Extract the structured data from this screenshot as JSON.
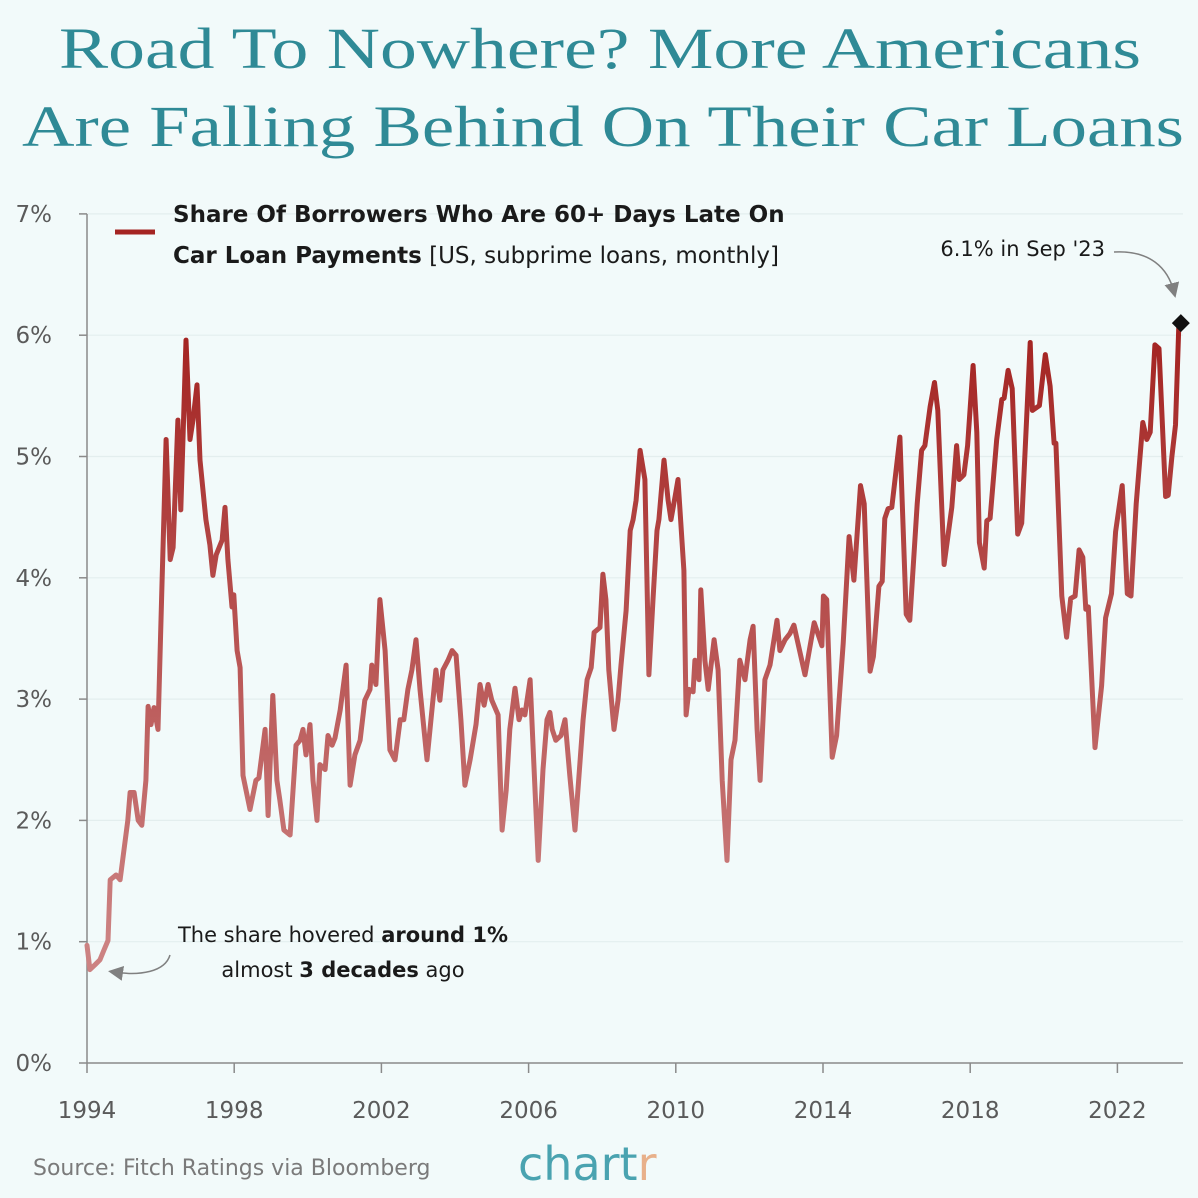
{
  "chart_data": {
    "type": "line",
    "title": [
      "Road To Nowhere? More Americans",
      "Are Falling Behind On Their Car Loans"
    ],
    "legend": {
      "line1": "Share Of Borrowers Who Are 60+ Days Late On",
      "line2_bold": "Car Loan Payments",
      "line2_note": " [US, subprime loans, monthly]",
      "placement": "top-left"
    },
    "xlim": [
      1994,
      2023.75
    ],
    "ylim": [
      0,
      7
    ],
    "x_ticks": [
      "1994",
      "1998",
      "2002",
      "2006",
      "2010",
      "2014",
      "2018",
      "2022"
    ],
    "y_ticks": [
      "0%",
      "1%",
      "2%",
      "3%",
      "4%",
      "5%",
      "6%",
      "7%"
    ],
    "grid": "horizontal",
    "colors": {
      "line_high": "#a42422",
      "line_low": "#cc7f7f",
      "title": "#2f8a96",
      "marker": "#111111"
    },
    "series": [
      {
        "name": "Share Of Borrowers Who Are 60+ Days Late On Car Loan Payments",
        "points": [
          [
            1994.0,
            0.97
          ],
          [
            1994.08,
            0.77
          ],
          [
            1994.22,
            0.81
          ],
          [
            1994.35,
            0.85
          ],
          [
            1994.46,
            0.93
          ],
          [
            1994.57,
            1.01
          ],
          [
            1994.63,
            1.51
          ],
          [
            1994.79,
            1.55
          ],
          [
            1994.9,
            1.51
          ],
          [
            1995.11,
            2.0
          ],
          [
            1995.17,
            2.23
          ],
          [
            1995.28,
            2.23
          ],
          [
            1995.39,
            2.0
          ],
          [
            1995.49,
            1.96
          ],
          [
            1995.6,
            2.33
          ],
          [
            1995.66,
            2.94
          ],
          [
            1995.74,
            2.79
          ],
          [
            1995.82,
            2.93
          ],
          [
            1995.93,
            2.75
          ],
          [
            1996.04,
            3.98
          ],
          [
            1996.15,
            5.14
          ],
          [
            1996.26,
            4.15
          ],
          [
            1996.34,
            4.25
          ],
          [
            1996.47,
            5.3
          ],
          [
            1996.55,
            4.56
          ],
          [
            1996.69,
            5.96
          ],
          [
            1996.8,
            5.14
          ],
          [
            1996.88,
            5.3
          ],
          [
            1996.99,
            5.59
          ],
          [
            1997.07,
            4.97
          ],
          [
            1997.23,
            4.48
          ],
          [
            1997.34,
            4.27
          ],
          [
            1997.42,
            4.02
          ],
          [
            1997.51,
            4.19
          ],
          [
            1997.67,
            4.31
          ],
          [
            1997.75,
            4.58
          ],
          [
            1997.83,
            4.15
          ],
          [
            1997.94,
            3.76
          ],
          [
            1997.99,
            3.86
          ],
          [
            1998.08,
            3.4
          ],
          [
            1998.16,
            3.26
          ],
          [
            1998.24,
            2.37
          ],
          [
            1998.43,
            2.09
          ],
          [
            1998.59,
            2.33
          ],
          [
            1998.67,
            2.35
          ],
          [
            1998.84,
            2.75
          ],
          [
            1998.92,
            2.04
          ],
          [
            1999.05,
            3.03
          ],
          [
            1999.16,
            2.33
          ],
          [
            1999.24,
            2.17
          ],
          [
            1999.35,
            1.92
          ],
          [
            1999.52,
            1.88
          ],
          [
            1999.68,
            2.62
          ],
          [
            1999.79,
            2.66
          ],
          [
            1999.87,
            2.75
          ],
          [
            1999.95,
            2.54
          ],
          [
            2000.06,
            2.79
          ],
          [
            2000.14,
            2.33
          ],
          [
            2000.25,
            2.0
          ],
          [
            2000.33,
            2.46
          ],
          [
            2000.47,
            2.42
          ],
          [
            2000.55,
            2.7
          ],
          [
            2000.66,
            2.62
          ],
          [
            2000.74,
            2.68
          ],
          [
            2000.88,
            2.91
          ],
          [
            2001.04,
            3.28
          ],
          [
            2001.15,
            2.29
          ],
          [
            2001.28,
            2.54
          ],
          [
            2001.42,
            2.66
          ],
          [
            2001.55,
            2.99
          ],
          [
            2001.69,
            3.08
          ],
          [
            2001.74,
            3.28
          ],
          [
            2001.85,
            3.12
          ],
          [
            2001.96,
            3.82
          ],
          [
            2002.1,
            3.4
          ],
          [
            2002.23,
            2.58
          ],
          [
            2002.37,
            2.5
          ],
          [
            2002.51,
            2.83
          ],
          [
            2002.61,
            2.83
          ],
          [
            2002.72,
            3.08
          ],
          [
            2002.83,
            3.24
          ],
          [
            2002.94,
            3.49
          ],
          [
            2003.05,
            3.08
          ],
          [
            2003.24,
            2.5
          ],
          [
            2003.4,
            2.99
          ],
          [
            2003.48,
            3.24
          ],
          [
            2003.59,
            2.99
          ],
          [
            2003.67,
            3.24
          ],
          [
            2003.81,
            3.32
          ],
          [
            2003.92,
            3.4
          ],
          [
            2004.03,
            3.36
          ],
          [
            2004.16,
            2.83
          ],
          [
            2004.27,
            2.29
          ],
          [
            2004.41,
            2.5
          ],
          [
            2004.57,
            2.79
          ],
          [
            2004.68,
            3.12
          ],
          [
            2004.79,
            2.95
          ],
          [
            2004.9,
            3.12
          ],
          [
            2005.0,
            2.99
          ],
          [
            2005.17,
            2.87
          ],
          [
            2005.28,
            1.92
          ],
          [
            2005.39,
            2.25
          ],
          [
            2005.49,
            2.75
          ],
          [
            2005.63,
            3.09
          ],
          [
            2005.74,
            2.83
          ],
          [
            2005.82,
            2.91
          ],
          [
            2005.9,
            2.87
          ],
          [
            2006.04,
            3.16
          ],
          [
            2006.15,
            2.42
          ],
          [
            2006.26,
            1.67
          ],
          [
            2006.39,
            2.42
          ],
          [
            2006.5,
            2.83
          ],
          [
            2006.58,
            2.89
          ],
          [
            2006.64,
            2.75
          ],
          [
            2006.74,
            2.66
          ],
          [
            2006.88,
            2.7
          ],
          [
            2006.99,
            2.83
          ],
          [
            2007.12,
            2.37
          ],
          [
            2007.26,
            1.92
          ],
          [
            2007.48,
            2.83
          ],
          [
            2007.59,
            3.16
          ],
          [
            2007.7,
            3.26
          ],
          [
            2007.78,
            3.55
          ],
          [
            2007.94,
            3.59
          ],
          [
            2008.02,
            4.03
          ],
          [
            2008.1,
            3.82
          ],
          [
            2008.18,
            3.24
          ],
          [
            2008.32,
            2.75
          ],
          [
            2008.43,
            2.99
          ],
          [
            2008.51,
            3.28
          ],
          [
            2008.65,
            3.73
          ],
          [
            2008.76,
            4.39
          ],
          [
            2008.84,
            4.48
          ],
          [
            2008.92,
            4.64
          ],
          [
            2009.03,
            5.05
          ],
          [
            2009.16,
            4.81
          ],
          [
            2009.27,
            3.2
          ],
          [
            2009.38,
            3.82
          ],
          [
            2009.49,
            4.39
          ],
          [
            2009.54,
            4.48
          ],
          [
            2009.68,
            4.97
          ],
          [
            2009.79,
            4.64
          ],
          [
            2009.87,
            4.48
          ],
          [
            2009.98,
            4.67
          ],
          [
            2010.06,
            4.81
          ],
          [
            2010.22,
            4.06
          ],
          [
            2010.28,
            2.87
          ],
          [
            2010.36,
            3.08
          ],
          [
            2010.47,
            3.06
          ],
          [
            2010.52,
            3.32
          ],
          [
            2010.63,
            3.16
          ],
          [
            2010.68,
            3.9
          ],
          [
            2010.79,
            3.32
          ],
          [
            2010.88,
            3.08
          ],
          [
            2011.04,
            3.49
          ],
          [
            2011.15,
            3.24
          ],
          [
            2011.26,
            2.33
          ],
          [
            2011.39,
            1.67
          ],
          [
            2011.5,
            2.5
          ],
          [
            2011.61,
            2.66
          ],
          [
            2011.74,
            3.32
          ],
          [
            2011.88,
            3.16
          ],
          [
            2011.93,
            3.28
          ],
          [
            2012.02,
            3.49
          ],
          [
            2012.1,
            3.6
          ],
          [
            2012.21,
            2.75
          ],
          [
            2012.29,
            2.33
          ],
          [
            2012.42,
            3.16
          ],
          [
            2012.56,
            3.28
          ],
          [
            2012.75,
            3.65
          ],
          [
            2012.83,
            3.4
          ],
          [
            2012.97,
            3.49
          ],
          [
            2013.1,
            3.54
          ],
          [
            2013.21,
            3.61
          ],
          [
            2013.51,
            3.2
          ],
          [
            2013.76,
            3.63
          ],
          [
            2013.97,
            3.44
          ],
          [
            2014.01,
            3.85
          ],
          [
            2014.1,
            3.82
          ],
          [
            2014.25,
            2.52
          ],
          [
            2014.37,
            2.7
          ],
          [
            2014.55,
            3.46
          ],
          [
            2014.71,
            4.34
          ],
          [
            2014.84,
            3.98
          ],
          [
            2015.02,
            4.76
          ],
          [
            2015.12,
            4.61
          ],
          [
            2015.28,
            3.23
          ],
          [
            2015.37,
            3.35
          ],
          [
            2015.52,
            3.93
          ],
          [
            2015.61,
            3.97
          ],
          [
            2015.68,
            4.49
          ],
          [
            2015.77,
            4.57
          ],
          [
            2015.87,
            4.58
          ],
          [
            2016.09,
            5.16
          ],
          [
            2016.26,
            3.7
          ],
          [
            2016.36,
            3.65
          ],
          [
            2016.56,
            4.61
          ],
          [
            2016.68,
            5.05
          ],
          [
            2016.77,
            5.09
          ],
          [
            2016.91,
            5.41
          ],
          [
            2017.03,
            5.61
          ],
          [
            2017.12,
            5.38
          ],
          [
            2017.29,
            4.11
          ],
          [
            2017.5,
            4.58
          ],
          [
            2017.63,
            5.09
          ],
          [
            2017.7,
            4.81
          ],
          [
            2017.83,
            4.85
          ],
          [
            2017.93,
            5.09
          ],
          [
            2018.08,
            5.75
          ],
          [
            2018.18,
            5.2
          ],
          [
            2018.25,
            4.29
          ],
          [
            2018.38,
            4.08
          ],
          [
            2018.45,
            4.47
          ],
          [
            2018.54,
            4.49
          ],
          [
            2018.72,
            5.14
          ],
          [
            2018.86,
            5.47
          ],
          [
            2018.92,
            5.48
          ],
          [
            2019.03,
            5.71
          ],
          [
            2019.14,
            5.56
          ],
          [
            2019.29,
            4.36
          ],
          [
            2019.4,
            4.45
          ],
          [
            2019.63,
            5.94
          ],
          [
            2019.69,
            5.38
          ],
          [
            2019.88,
            5.42
          ],
          [
            2020.04,
            5.84
          ],
          [
            2020.17,
            5.58
          ],
          [
            2020.28,
            5.11
          ],
          [
            2020.33,
            5.11
          ],
          [
            2020.49,
            3.85
          ],
          [
            2020.62,
            3.51
          ],
          [
            2020.73,
            3.83
          ],
          [
            2020.85,
            3.85
          ],
          [
            2020.96,
            4.23
          ],
          [
            2021.06,
            4.17
          ],
          [
            2021.14,
            3.74
          ],
          [
            2021.21,
            3.76
          ],
          [
            2021.39,
            2.6
          ],
          [
            2021.57,
            3.11
          ],
          [
            2021.68,
            3.67
          ],
          [
            2021.84,
            3.87
          ],
          [
            2021.95,
            4.38
          ],
          [
            2022.13,
            4.76
          ],
          [
            2022.27,
            3.87
          ],
          [
            2022.37,
            3.85
          ],
          [
            2022.51,
            4.61
          ],
          [
            2022.69,
            5.28
          ],
          [
            2022.8,
            5.14
          ],
          [
            2022.89,
            5.2
          ],
          [
            2023.02,
            5.92
          ],
          [
            2023.13,
            5.89
          ],
          [
            2023.31,
            4.67
          ],
          [
            2023.38,
            4.68
          ],
          [
            2023.48,
            5.0
          ],
          [
            2023.58,
            5.26
          ],
          [
            2023.67,
            6.1
          ]
        ]
      }
    ],
    "highlight": {
      "x": 2023.67,
      "y": 6.1,
      "marker": "diamond"
    },
    "annotations": {
      "latest": "6.1% in Sep '23",
      "early_line1_a": "The share hovered ",
      "early_line1_b": "around 1%",
      "early_line2_a": "almost ",
      "early_line2_b": "3 decades",
      "early_line2_c": " ago"
    }
  },
  "footer": {
    "source": "Source: Fitch Ratings via Bloomberg",
    "logo_main": "chart",
    "logo_end": "r"
  }
}
